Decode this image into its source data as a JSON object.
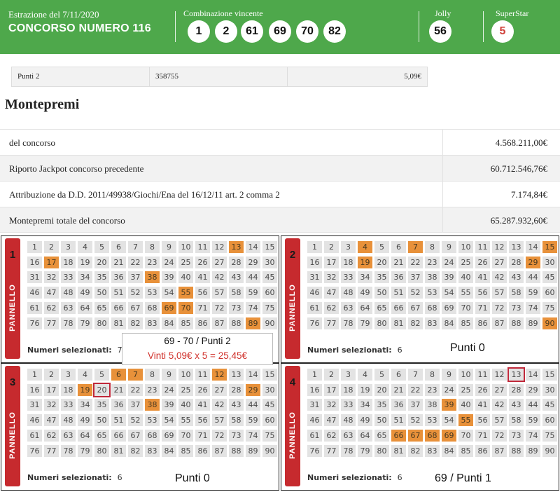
{
  "header": {
    "date": "Estrazione del 7/11/2020",
    "concorso": "CONCORSO NUMERO 116",
    "combinazione_label": "Combinazione vincente",
    "numbers": [
      "1",
      "2",
      "61",
      "69",
      "70",
      "82"
    ],
    "jolly_label": "Jolly",
    "jolly": "56",
    "superstar_label": "SuperStar",
    "superstar": "5",
    "colors": {
      "bar": "#4ea84b",
      "superstar_number": "#d0413a"
    }
  },
  "punti_row": {
    "label": "Punti 2",
    "count": "358755",
    "prize": "5,09€"
  },
  "montepremi": {
    "title": "Montepremi",
    "rows": [
      {
        "label": "del concorso",
        "value": "4.568.211,00€"
      },
      {
        "label": "Riporto Jackpot concorso precedente",
        "value": "60.712.546,76€"
      },
      {
        "label": "Attribuzione da D.D. 2011/49938/Giochi/Ena del 16/12/11 art. 2 comma 2",
        "value": "7.174,84€"
      },
      {
        "label": "Montepremi totale del concorso",
        "value": "65.287.932,60€"
      }
    ]
  },
  "panels": [
    {
      "number": "1",
      "label": "PANNELLO",
      "footer_label": "Numeri selezionati:",
      "count": "7",
      "highlighted": [
        13,
        17,
        38,
        55,
        69,
        70,
        89
      ],
      "boxed": [],
      "note": ""
    },
    {
      "number": "2",
      "label": "PANNELLO",
      "footer_label": "Numeri selezionati:",
      "count": "6",
      "highlighted": [
        4,
        7,
        15,
        19,
        29,
        90
      ],
      "boxed": [],
      "note": "Punti 0"
    },
    {
      "number": "3",
      "label": "PANNELLO",
      "footer_label": "Numeri selezionati:",
      "count": "6",
      "highlighted": [
        6,
        7,
        12,
        19,
        29,
        38
      ],
      "boxed": [
        20
      ],
      "note": "Punti 0"
    },
    {
      "number": "4",
      "label": "PANNELLO",
      "footer_label": "Numeri selezionati:",
      "count": "6",
      "highlighted": [
        39,
        55,
        66,
        67,
        68,
        69
      ],
      "boxed": [
        13
      ],
      "note": "69 / Punti 1"
    }
  ],
  "callout": {
    "line1": "69 - 70 / Punti 2",
    "line2": "Vinti 5,09€ x 5 = 25,45€"
  },
  "colors": {
    "highlight": "#e8913a",
    "cell": "#e3e3e3",
    "panel_side": "#c62a2e",
    "win_text": "#d0302a"
  }
}
